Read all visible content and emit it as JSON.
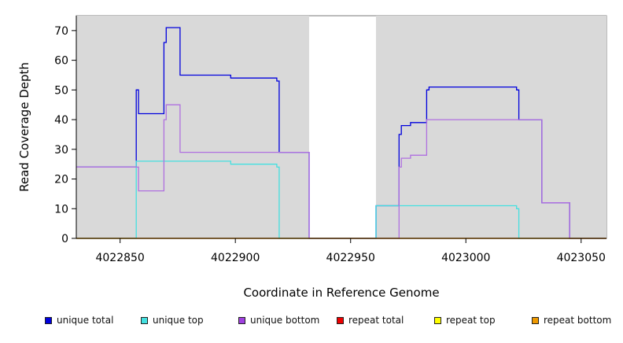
{
  "chart_data": {
    "type": "line",
    "title": "",
    "xlabel": "Coordinate in Reference Genome",
    "ylabel": "Read Coverage Depth",
    "xlim": [
      4022831,
      4023061
    ],
    "ylim": [
      0,
      75
    ],
    "x_ticks": [
      4022850,
      4022900,
      4022950,
      4023000,
      4023050
    ],
    "x_tick_labels": [
      "4022850",
      "4022900",
      "4022950",
      "4023000",
      "4023050"
    ],
    "y_ticks": [
      0,
      10,
      20,
      30,
      40,
      50,
      60,
      70
    ],
    "y_tick_labels": [
      "0",
      "10",
      "20",
      "30",
      "40",
      "50",
      "60",
      "70"
    ],
    "shaded_regions": [
      {
        "from": 4022831,
        "to": 4022932,
        "color": "#d9d9d9"
      },
      {
        "from": 4022961,
        "to": 4023061,
        "color": "#d9d9d9"
      }
    ],
    "legend_position": "bottom",
    "series": [
      {
        "name": "unique total",
        "color": "#0000dd",
        "steps": [
          [
            4022831,
            24
          ],
          [
            4022857,
            50
          ],
          [
            4022858,
            42
          ],
          [
            4022869,
            66
          ],
          [
            4022870,
            71
          ],
          [
            4022876,
            55
          ],
          [
            4022898,
            54
          ],
          [
            4022918,
            53
          ],
          [
            4022919,
            29
          ],
          [
            4022932,
            0
          ],
          [
            4022961,
            11
          ],
          [
            4022971,
            35
          ],
          [
            4022972,
            38
          ],
          [
            4022976,
            39
          ],
          [
            4022983,
            50
          ],
          [
            4022984,
            51
          ],
          [
            4023022,
            50
          ],
          [
            4023023,
            40
          ],
          [
            4023033,
            12
          ],
          [
            4023045,
            0
          ],
          [
            4023061,
            0
          ]
        ]
      },
      {
        "name": "unique top",
        "color": "#44e0e0",
        "steps": [
          [
            4022831,
            0
          ],
          [
            4022857,
            26
          ],
          [
            4022898,
            25
          ],
          [
            4022918,
            24
          ],
          [
            4022919,
            0
          ],
          [
            4022961,
            11
          ],
          [
            4023022,
            10
          ],
          [
            4023023,
            0
          ],
          [
            4023061,
            0
          ]
        ]
      },
      {
        "name": "unique bottom",
        "color": "#b070e0",
        "steps": [
          [
            4022831,
            24
          ],
          [
            4022858,
            16
          ],
          [
            4022869,
            40
          ],
          [
            4022870,
            45
          ],
          [
            4022876,
            29
          ],
          [
            4022919,
            29
          ],
          [
            4022932,
            0
          ],
          [
            4022971,
            24
          ],
          [
            4022972,
            27
          ],
          [
            4022976,
            28
          ],
          [
            4022983,
            40
          ],
          [
            4023023,
            40
          ],
          [
            4023033,
            12
          ],
          [
            4023045,
            0
          ],
          [
            4023061,
            0
          ]
        ]
      },
      {
        "name": "repeat total",
        "color": "#ee0000",
        "steps": [
          [
            4022831,
            0
          ],
          [
            4023061,
            0
          ]
        ]
      },
      {
        "name": "repeat top",
        "color": "#eeee00",
        "steps": [
          [
            4022831,
            0
          ],
          [
            4023061,
            0
          ]
        ]
      },
      {
        "name": "repeat bottom",
        "color": "#ee9900",
        "steps": [
          [
            4022831,
            0
          ],
          [
            4023061,
            0
          ]
        ]
      }
    ]
  },
  "legend": {
    "items": [
      {
        "label": "unique total",
        "color": "#0000dd"
      },
      {
        "label": "unique top",
        "color": "#44e0e0"
      },
      {
        "label": "unique bottom",
        "color": "#a040e0"
      },
      {
        "label": "repeat total",
        "color": "#ee0000"
      },
      {
        "label": "repeat top",
        "color": "#ffff00"
      },
      {
        "label": "repeat bottom",
        "color": "#ee9900"
      }
    ]
  }
}
